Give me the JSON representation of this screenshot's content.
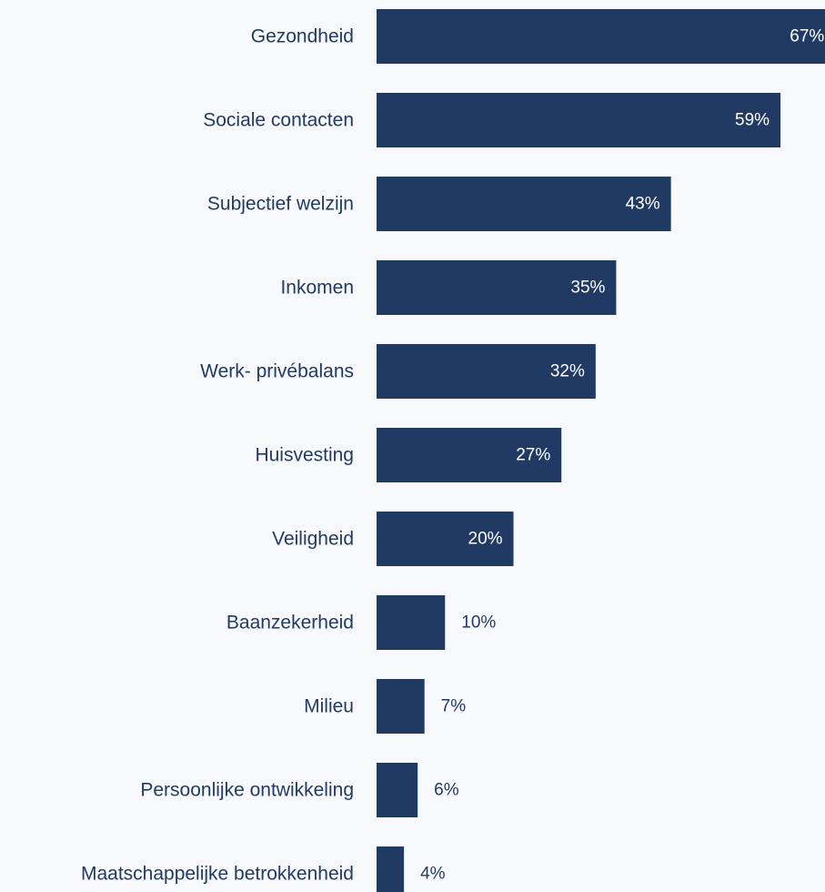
{
  "chart_data": {
    "type": "bar",
    "orientation": "horizontal",
    "title": "",
    "xlabel": "",
    "ylabel": "",
    "categories": [
      "Gezondheid",
      "Sociale contacten",
      "Subjectief welzijn",
      "Inkomen",
      "Werk- privébalans",
      "Huisvesting",
      "Veiligheid",
      "Baanzekerheid",
      "Milieu",
      "Persoonlijke ontwikkeling",
      "Maatschappelijke betrokkenheid"
    ],
    "values": [
      67,
      59,
      43,
      35,
      32,
      27,
      20,
      10,
      7,
      6,
      4
    ],
    "value_labels": [
      "67%",
      "59%",
      "43%",
      "35%",
      "32%",
      "27%",
      "20%",
      "10%",
      "7%",
      "6%",
      "4%"
    ],
    "xlim": [
      0,
      65.5
    ],
    "grid": false,
    "legend": "none",
    "colors": {
      "bar": "#213a64",
      "label_text": "#213a64",
      "value_inside": "#ffffff",
      "value_outside": "#213a64",
      "background": "#f7f9fc"
    }
  }
}
